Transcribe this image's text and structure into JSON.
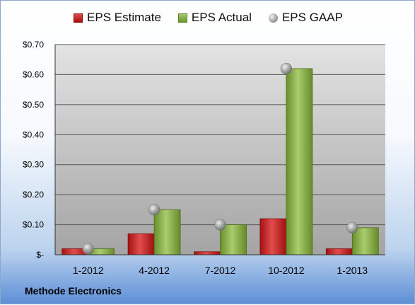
{
  "chart_data": {
    "type": "bar",
    "categories": [
      "1-2012",
      "4-2012",
      "7-2012",
      "10-2012",
      "1-2013"
    ],
    "series": [
      {
        "name": "EPS Estimate",
        "kind": "bar",
        "color": "#c62828",
        "values": [
          0.02,
          0.07,
          0.01,
          0.12,
          0.02
        ]
      },
      {
        "name": "EPS Actual",
        "kind": "bar",
        "color": "#8db34a",
        "values": [
          0.02,
          0.15,
          0.1,
          0.62,
          0.09
        ]
      },
      {
        "name": "EPS GAAP",
        "kind": "marker",
        "color": "#a0a0a0",
        "values": [
          0.02,
          0.15,
          0.1,
          0.62,
          0.09
        ]
      }
    ],
    "y_ticks": [
      "$-",
      "$0.10",
      "$0.20",
      "$0.30",
      "$0.40",
      "$0.50",
      "$0.60",
      "$0.70"
    ],
    "ylim": [
      0,
      0.7
    ],
    "grid": true,
    "legend_position": "top"
  },
  "footer": {
    "company": "Methode Electronics"
  }
}
